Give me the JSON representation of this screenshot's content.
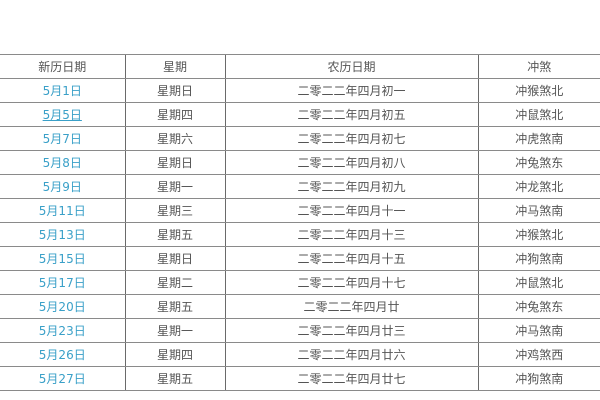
{
  "colors": {
    "link": "#3aa0c8",
    "text": "#555555",
    "border": "#8a8a8a"
  },
  "table": {
    "headers": [
      "新历日期",
      "星期",
      "农历日期",
      "冲煞"
    ],
    "rows": [
      {
        "date": "5月1日",
        "weekday": "星期日",
        "lunar": "二零二二年四月初一",
        "chongsha": "冲猴煞北"
      },
      {
        "date": "5月5日",
        "weekday": "星期四",
        "lunar": "二零二二年四月初五",
        "chongsha": "冲鼠煞北",
        "underlined": true
      },
      {
        "date": "5月7日",
        "weekday": "星期六",
        "lunar": "二零二二年四月初七",
        "chongsha": "冲虎煞南"
      },
      {
        "date": "5月8日",
        "weekday": "星期日",
        "lunar": "二零二二年四月初八",
        "chongsha": "冲兔煞东"
      },
      {
        "date": "5月9日",
        "weekday": "星期一",
        "lunar": "二零二二年四月初九",
        "chongsha": "冲龙煞北"
      },
      {
        "date": "5月11日",
        "weekday": "星期三",
        "lunar": "二零二二年四月十一",
        "chongsha": "冲马煞南"
      },
      {
        "date": "5月13日",
        "weekday": "星期五",
        "lunar": "二零二二年四月十三",
        "chongsha": "冲猴煞北"
      },
      {
        "date": "5月15日",
        "weekday": "星期日",
        "lunar": "二零二二年四月十五",
        "chongsha": "冲狗煞南"
      },
      {
        "date": "5月17日",
        "weekday": "星期二",
        "lunar": "二零二二年四月十七",
        "chongsha": "冲鼠煞北"
      },
      {
        "date": "5月20日",
        "weekday": "星期五",
        "lunar": "二零二二年四月廿",
        "chongsha": "冲兔煞东"
      },
      {
        "date": "5月23日",
        "weekday": "星期一",
        "lunar": "二零二二年四月廿三",
        "chongsha": "冲马煞南"
      },
      {
        "date": "5月26日",
        "weekday": "星期四",
        "lunar": "二零二二年四月廿六",
        "chongsha": "冲鸡煞西"
      },
      {
        "date": "5月27日",
        "weekday": "星期五",
        "lunar": "二零二二年四月廿七",
        "chongsha": "冲狗煞南"
      }
    ]
  }
}
